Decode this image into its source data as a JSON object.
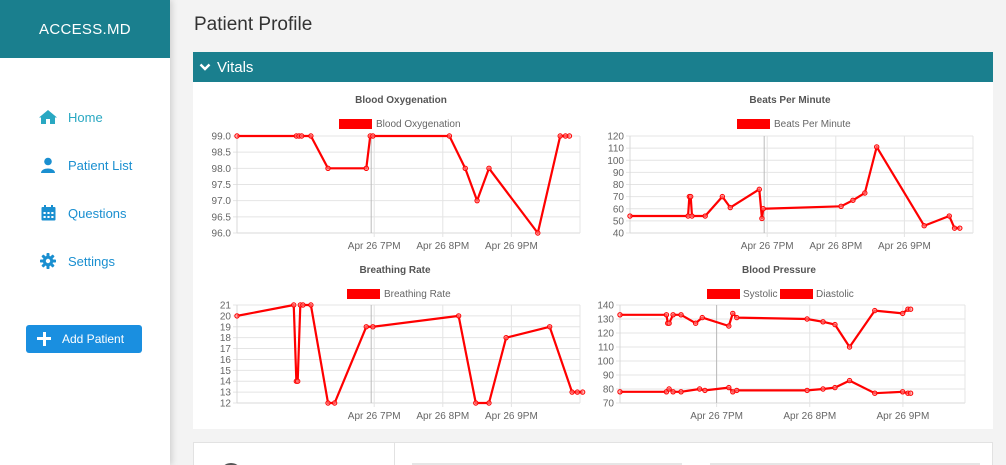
{
  "app": {
    "brand": "ACCESS.MD"
  },
  "sidebar": {
    "items": [
      {
        "label": "Home",
        "icon": "home-icon"
      },
      {
        "label": "Patient List",
        "icon": "user-icon"
      },
      {
        "label": "Questions",
        "icon": "calendar-icon"
      },
      {
        "label": "Settings",
        "icon": "gear-icon"
      }
    ],
    "add_patient": "Add Patient"
  },
  "main": {
    "title": "Patient Profile",
    "section": "Vitals"
  },
  "colors": {
    "teal": "#1a7f8e",
    "link": "#1a8fd0",
    "series": "#ff0000",
    "button": "#1a8fe0"
  },
  "chart_data": [
    {
      "type": "line",
      "title": "Blood Oxygenation",
      "legend": [
        "Blood Oxygenation"
      ],
      "xlabels": [
        "Apr 26 7PM",
        "Apr 26 8PM",
        "Apr 26 9PM"
      ],
      "ylim": [
        96.0,
        99.0
      ],
      "yticks": [
        "99.0",
        "98.5",
        "98.0",
        "97.5",
        "97.0",
        "96.5",
        "96.0"
      ],
      "series": [
        {
          "name": "Blood Oxygenation",
          "values": [
            [
              0,
              99.0
            ],
            [
              0.225,
              99.0
            ],
            [
              0.235,
              99.0
            ],
            [
              0.245,
              99.0
            ],
            [
              0.28,
              99.0
            ],
            [
              0.345,
              98.0
            ],
            [
              0.49,
              98.0
            ],
            [
              0.505,
              99.0
            ],
            [
              0.515,
              99.0
            ],
            [
              0.805,
              99.0
            ],
            [
              0.865,
              98.0
            ],
            [
              0.91,
              97.0
            ],
            [
              0.955,
              98.0
            ],
            [
              1.14,
              96.0
            ],
            [
              1.225,
              99.0
            ],
            [
              1.245,
              99.0
            ],
            [
              1.26,
              99.0
            ]
          ]
        }
      ]
    },
    {
      "type": "line",
      "title": "Beats Per Minute",
      "legend": [
        "Beats Per Minute"
      ],
      "xlabels": [
        "Apr 26 7PM",
        "Apr 26 8PM",
        "Apr 26 9PM"
      ],
      "ylim": [
        40,
        120
      ],
      "yticks": [
        "120",
        "110",
        "100",
        "90",
        "80",
        "70",
        "60",
        "50",
        "40"
      ],
      "series": [
        {
          "name": "Beats Per Minute",
          "values": [
            [
              0,
              54
            ],
            [
              0.22,
              54
            ],
            [
              0.225,
              70
            ],
            [
              0.23,
              70
            ],
            [
              0.235,
              54
            ],
            [
              0.285,
              54
            ],
            [
              0.35,
              70
            ],
            [
              0.38,
              61
            ],
            [
              0.49,
              76
            ],
            [
              0.5,
              52
            ],
            [
              0.505,
              60
            ],
            [
              0.8,
              62
            ],
            [
              0.845,
              67
            ],
            [
              0.89,
              73
            ],
            [
              0.935,
              111
            ],
            [
              1.115,
              46
            ],
            [
              1.21,
              54
            ],
            [
              1.23,
              44
            ],
            [
              1.25,
              44
            ]
          ]
        }
      ]
    },
    {
      "type": "line",
      "title": "Breathing Rate",
      "legend": [
        "Breathing Rate"
      ],
      "xlabels": [
        "Apr 26 7PM",
        "Apr 26 8PM",
        "Apr 26 9PM"
      ],
      "ylim": [
        12,
        21
      ],
      "yticks": [
        "21",
        "20",
        "19",
        "18",
        "17",
        "16",
        "15",
        "14",
        "13",
        "12"
      ],
      "series": [
        {
          "name": "Breathing Rate",
          "values": [
            [
              0,
              20
            ],
            [
              0.215,
              21
            ],
            [
              0.225,
              14
            ],
            [
              0.23,
              14
            ],
            [
              0.24,
              21
            ],
            [
              0.25,
              21
            ],
            [
              0.28,
              21
            ],
            [
              0.345,
              12
            ],
            [
              0.37,
              12
            ],
            [
              0.49,
              19
            ],
            [
              0.515,
              19
            ],
            [
              0.84,
              20
            ],
            [
              0.905,
              12
            ],
            [
              0.955,
              12
            ],
            [
              1.02,
              18
            ],
            [
              1.185,
              19
            ],
            [
              1.27,
              13
            ],
            [
              1.29,
              13
            ],
            [
              1.31,
              13
            ]
          ]
        }
      ]
    },
    {
      "type": "line",
      "title": "Blood Pressure",
      "legend": [
        "Systolic",
        "Diastolic"
      ],
      "xlabels": [
        "Apr 26 7PM",
        "Apr 26 8PM",
        "Apr 26 9PM"
      ],
      "ylim": [
        70,
        140
      ],
      "yticks": [
        "140",
        "130",
        "120",
        "110",
        "100",
        "90",
        "80",
        "70"
      ],
      "series": [
        {
          "name": "Systolic",
          "values": [
            [
              0,
              133
            ],
            [
              0.175,
              133
            ],
            [
              0.18,
              127
            ],
            [
              0.185,
              127
            ],
            [
              0.2,
              133
            ],
            [
              0.23,
              133
            ],
            [
              0.285,
              127
            ],
            [
              0.31,
              131
            ],
            [
              0.41,
              125
            ],
            [
              0.425,
              134
            ],
            [
              0.44,
              131
            ],
            [
              0.705,
              130
            ],
            [
              0.765,
              128
            ],
            [
              0.81,
              126
            ],
            [
              0.865,
              110
            ],
            [
              0.96,
              136
            ],
            [
              1.065,
              134
            ],
            [
              1.085,
              137
            ],
            [
              1.095,
              137
            ]
          ]
        },
        {
          "name": "Diastolic",
          "values": [
            [
              0,
              78
            ],
            [
              0.175,
              78
            ],
            [
              0.185,
              80
            ],
            [
              0.2,
              78
            ],
            [
              0.23,
              78
            ],
            [
              0.3,
              80
            ],
            [
              0.32,
              79
            ],
            [
              0.41,
              81
            ],
            [
              0.425,
              78
            ],
            [
              0.44,
              79
            ],
            [
              0.705,
              79
            ],
            [
              0.765,
              80
            ],
            [
              0.81,
              81
            ],
            [
              0.865,
              86
            ],
            [
              0.96,
              77
            ],
            [
              1.065,
              78
            ],
            [
              1.085,
              77
            ],
            [
              1.095,
              77
            ]
          ]
        }
      ]
    }
  ]
}
